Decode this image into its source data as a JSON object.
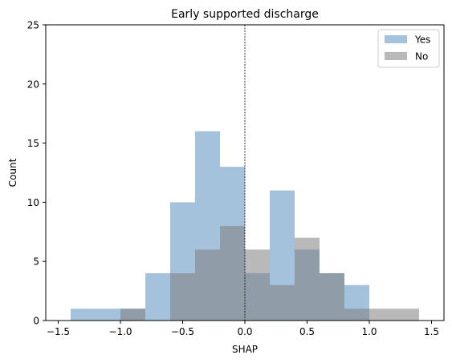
{
  "chart_data": {
    "type": "histogram",
    "title": "Early supported discharge",
    "xlabel": "SHAP",
    "ylabel": "Count",
    "xlim": [
      -1.6,
      1.6
    ],
    "ylim": [
      0,
      25
    ],
    "xticks": [
      -1.5,
      -1.0,
      -0.5,
      0.0,
      0.5,
      1.0,
      1.5
    ],
    "xtick_labels": [
      "−1.5",
      "−1.0",
      "−0.5",
      "0.0",
      "0.5",
      "1.0",
      "1.5"
    ],
    "yticks": [
      0,
      5,
      10,
      15,
      20,
      25
    ],
    "ytick_labels": [
      "0",
      "5",
      "10",
      "15",
      "20",
      "25"
    ],
    "vline_x": 0.0,
    "legend_position": "upper-right",
    "series": [
      {
        "name": "Yes",
        "color": "#5b8fbf",
        "opacity": 0.55,
        "bins": [
          {
            "x0": -1.4,
            "x1": -1.2,
            "count": 1
          },
          {
            "x0": -1.2,
            "x1": -1.0,
            "count": 1
          },
          {
            "x0": -1.0,
            "x1": -0.8,
            "count": 1
          },
          {
            "x0": -0.8,
            "x1": -0.6,
            "count": 4
          },
          {
            "x0": -0.6,
            "x1": -0.4,
            "count": 10
          },
          {
            "x0": -0.4,
            "x1": -0.2,
            "count": 16
          },
          {
            "x0": -0.2,
            "x1": 0.0,
            "count": 13
          },
          {
            "x0": 0.0,
            "x1": 0.2,
            "count": 4
          },
          {
            "x0": 0.2,
            "x1": 0.4,
            "count": 11
          },
          {
            "x0": 0.4,
            "x1": 0.6,
            "count": 6
          },
          {
            "x0": 0.6,
            "x1": 0.8,
            "count": 4
          },
          {
            "x0": 0.8,
            "x1": 1.0,
            "count": 3
          }
        ]
      },
      {
        "name": "No",
        "color": "#808080",
        "opacity": 0.55,
        "bins": [
          {
            "x0": -1.0,
            "x1": -0.8,
            "count": 1
          },
          {
            "x0": -0.8,
            "x1": -0.6,
            "count": 0
          },
          {
            "x0": -0.6,
            "x1": -0.4,
            "count": 4
          },
          {
            "x0": -0.4,
            "x1": -0.2,
            "count": 6
          },
          {
            "x0": -0.2,
            "x1": 0.0,
            "count": 8
          },
          {
            "x0": 0.0,
            "x1": 0.2,
            "count": 6
          },
          {
            "x0": 0.2,
            "x1": 0.4,
            "count": 3
          },
          {
            "x0": 0.4,
            "x1": 0.6,
            "count": 7
          },
          {
            "x0": 0.6,
            "x1": 0.8,
            "count": 4
          },
          {
            "x0": 0.8,
            "x1": 1.0,
            "count": 1
          },
          {
            "x0": 1.0,
            "x1": 1.2,
            "count": 1
          },
          {
            "x0": 1.2,
            "x1": 1.4,
            "count": 1
          }
        ]
      }
    ]
  }
}
